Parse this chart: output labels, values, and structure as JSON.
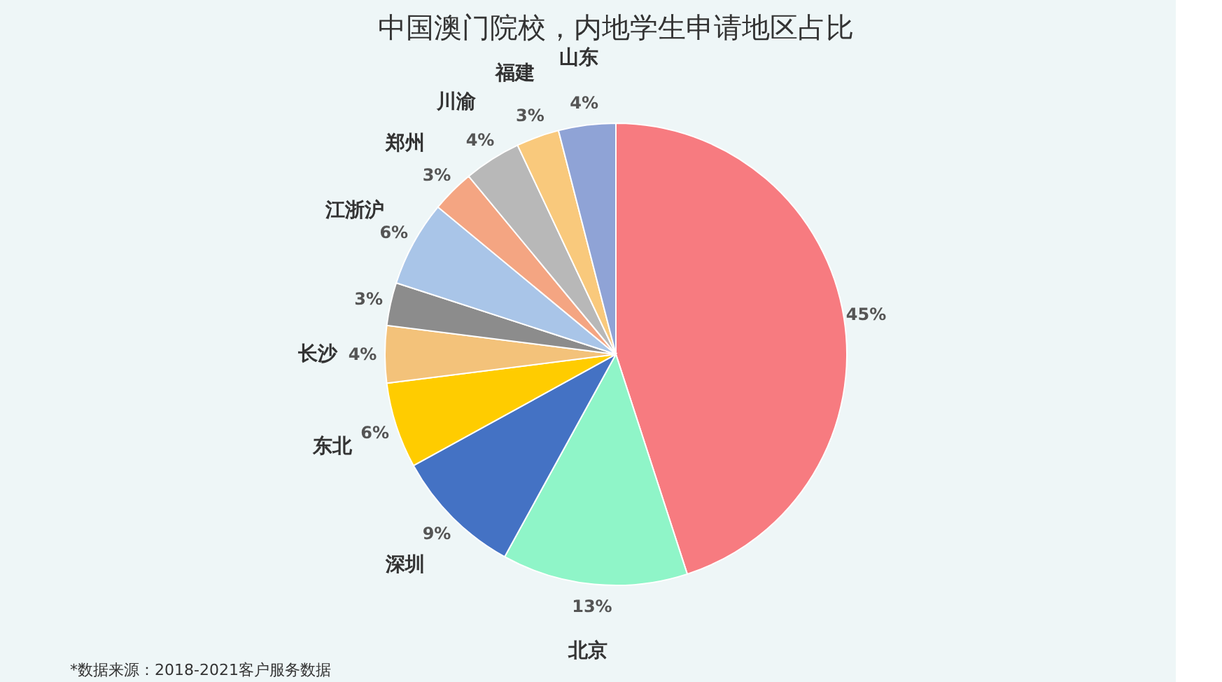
{
  "chart_data": {
    "type": "pie",
    "title": "中国澳门院校，内地学生申请地区占比",
    "categories": [
      null,
      "北京",
      "深圳",
      "东北",
      "长沙",
      null,
      "江浙沪",
      "郑州",
      "川渝",
      "福建",
      "山东"
    ],
    "values": [
      45,
      13,
      9,
      6,
      4,
      3,
      6,
      3,
      4,
      3,
      4
    ],
    "colors": [
      "#f77b80",
      "#8ff5c8",
      "#4472c4",
      "#ffcc00",
      "#f3c27a",
      "#8c8c8c",
      "#a9c5e8",
      "#f4a582",
      "#b8b8b8",
      "#f9c97c",
      "#8fa3d6"
    ],
    "value_labels": [
      "45%",
      "13%",
      "9%",
      "6%",
      "4%",
      "3%",
      "6%",
      "3%",
      "4%",
      "3%",
      "4%"
    ],
    "legend": false,
    "annotations": [
      "*数据来源：2018-2021客户服务数据"
    ]
  }
}
